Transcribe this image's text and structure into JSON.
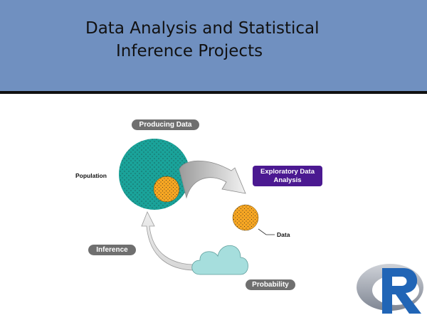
{
  "header": {
    "title_line1": "Data Analysis and Statistical",
    "title_line2": "Inference Projects",
    "background_color": "#7090c0"
  },
  "diagram": {
    "labels": {
      "producing_data": "Producing Data",
      "exploratory_line1": "Exploratory Data",
      "exploratory_line2": "Analysis",
      "population": "Population",
      "data": "Data",
      "inference": "Inference",
      "probability": "Probability"
    },
    "colors": {
      "population_fill": "#1aa39a",
      "sample_fill": "#f6a623",
      "cloud_fill": "#a6dedd",
      "arrow_fill": "#cfcfcf",
      "exploratory_badge": "#4b1991",
      "pill_badge": "#6f6f6f"
    }
  },
  "logo": {
    "icon": "r-logo-icon"
  }
}
